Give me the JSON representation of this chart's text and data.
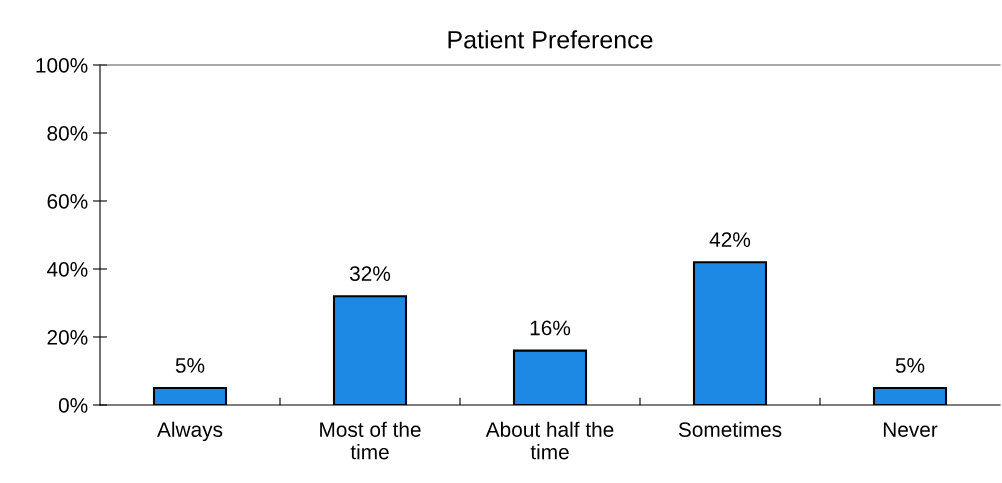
{
  "chart_data": {
    "type": "bar",
    "title": "Patient Preference",
    "categories": [
      "Always",
      "Most of the\ntime",
      "About half the\ntime",
      "Sometimes",
      "Never"
    ],
    "values": [
      5,
      32,
      16,
      42,
      5
    ],
    "color": "#1e88e5",
    "value_labels": [
      "5%",
      "32%",
      "16%",
      "42%",
      "5%"
    ],
    "ylim": [
      0,
      100
    ],
    "yticks": [
      {
        "value": 0,
        "label": "0%"
      },
      {
        "value": 20,
        "label": "20%"
      },
      {
        "value": 40,
        "label": "40%"
      },
      {
        "value": 60,
        "label": "60%"
      },
      {
        "value": 80,
        "label": "80%"
      },
      {
        "value": 100,
        "label": "100%"
      }
    ],
    "grid": false,
    "legend": false
  }
}
